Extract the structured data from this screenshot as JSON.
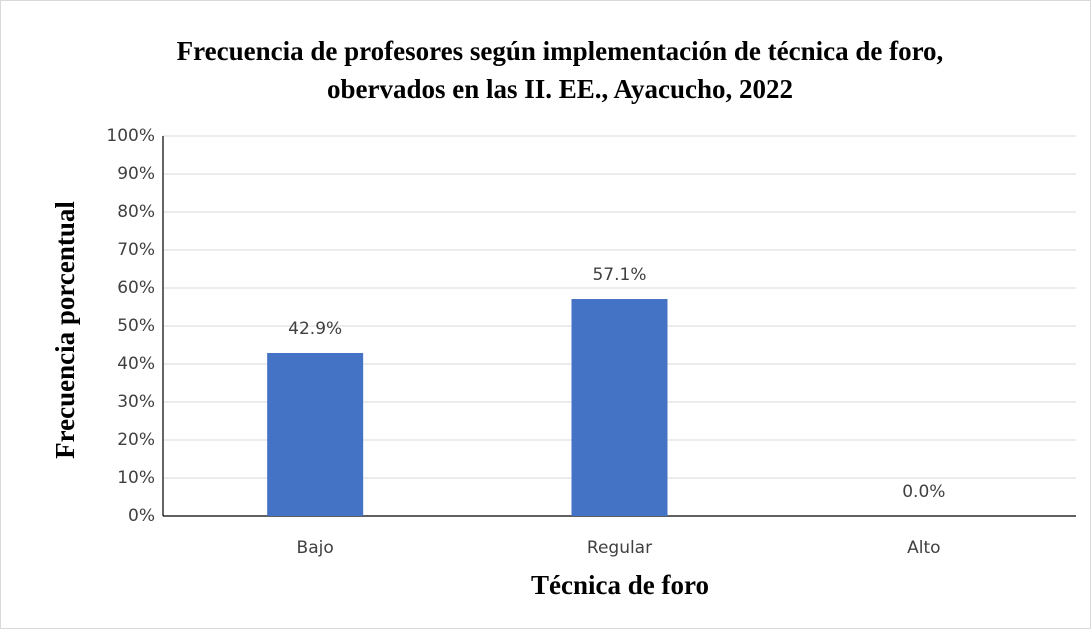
{
  "chart_data": {
    "type": "bar",
    "title": "Frecuencia de profesores según implementación de técnica de foro, obervados en las II. EE., Ayacucho, 2022",
    "x_label": "Técnica de foro",
    "y_label": "Frecuencia porcentual",
    "categories": [
      "Bajo",
      "Regular",
      "Alto"
    ],
    "values": [
      42.9,
      57.1,
      0.0
    ],
    "value_labels": [
      "42.9%",
      "57.1%",
      "0.0%"
    ],
    "color": "#4472c4",
    "ylim": [
      0,
      100
    ],
    "yticks": [
      {
        "value": 0,
        "label": "0%"
      },
      {
        "value": 10,
        "label": "10%"
      },
      {
        "value": 20,
        "label": "20%"
      },
      {
        "value": 30,
        "label": "30%"
      },
      {
        "value": 40,
        "label": "40%"
      },
      {
        "value": 50,
        "label": "50%"
      },
      {
        "value": 60,
        "label": "60%"
      },
      {
        "value": 70,
        "label": "70%"
      },
      {
        "value": 80,
        "label": "80%"
      },
      {
        "value": 90,
        "label": "90%"
      },
      {
        "value": 100,
        "label": "100%"
      }
    ],
    "grid": true
  }
}
